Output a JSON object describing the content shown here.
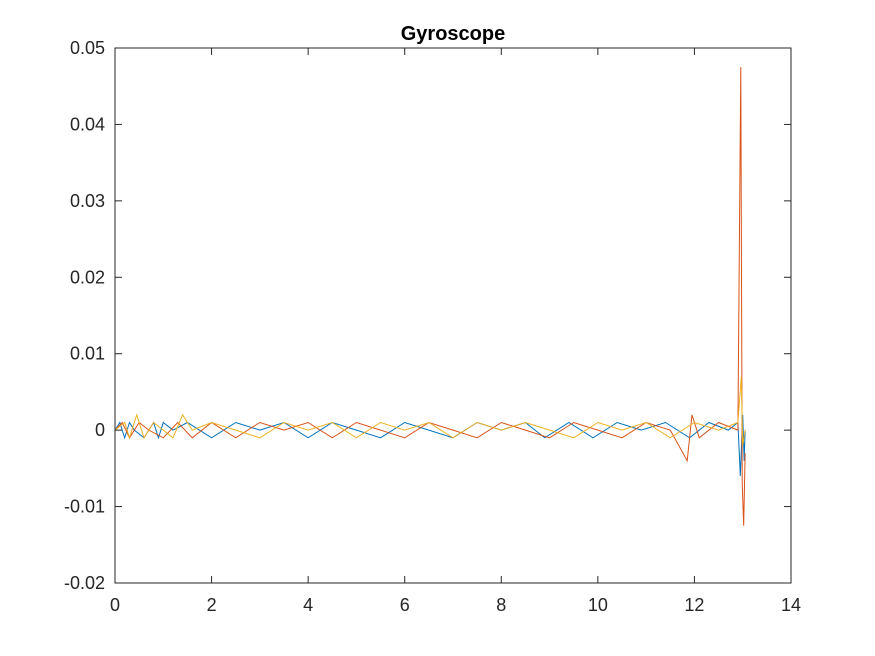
{
  "chart_data": {
    "type": "line",
    "title": "Gyroscope",
    "xlabel": "",
    "ylabel": "",
    "xlim": [
      0,
      14
    ],
    "ylim": [
      -0.02,
      0.05
    ],
    "x_ticks": [
      0,
      2,
      4,
      6,
      8,
      10,
      12,
      14
    ],
    "x_tick_labels": [
      "0",
      "2",
      "4",
      "6",
      "8",
      "10",
      "12",
      "14"
    ],
    "y_ticks": [
      -0.02,
      -0.01,
      0,
      0.01,
      0.02,
      0.03,
      0.04,
      0.05
    ],
    "y_tick_labels": [
      "-0.02",
      "-0.01",
      "0",
      "0.01",
      "0.02",
      "0.03",
      "0.04",
      "0.05"
    ],
    "grid": false,
    "legend": "none",
    "series": [
      {
        "color": "#0072BD",
        "points": [
          [
            0.0,
            0
          ],
          [
            0.1,
            0.001
          ],
          [
            0.2,
            -0.001
          ],
          [
            0.3,
            0.001
          ],
          [
            0.4,
            0
          ],
          [
            0.6,
            -0.001
          ],
          [
            0.8,
            0.001
          ],
          [
            0.9,
            -0.001
          ],
          [
            1.0,
            0.001
          ],
          [
            1.2,
            0
          ],
          [
            1.5,
            0.001
          ],
          [
            2.0,
            -0.001
          ],
          [
            2.5,
            0.001
          ],
          [
            3.0,
            0
          ],
          [
            3.5,
            0.001
          ],
          [
            4.0,
            -0.001
          ],
          [
            4.5,
            0.001
          ],
          [
            5.0,
            0
          ],
          [
            5.5,
            -0.001
          ],
          [
            6.0,
            0.001
          ],
          [
            6.5,
            0
          ],
          [
            7.0,
            -0.001
          ],
          [
            7.5,
            0.001
          ],
          [
            8.0,
            0
          ],
          [
            8.5,
            0.001
          ],
          [
            8.9,
            -0.001
          ],
          [
            9.4,
            0.001
          ],
          [
            9.9,
            -0.001
          ],
          [
            10.4,
            0.001
          ],
          [
            10.9,
            0
          ],
          [
            11.4,
            0.001
          ],
          [
            11.9,
            -0.001
          ],
          [
            12.3,
            0.001
          ],
          [
            12.7,
            0
          ],
          [
            12.9,
            0.001
          ],
          [
            12.95,
            -0.006
          ],
          [
            13.0,
            0.002
          ],
          [
            13.03,
            -0.004
          ],
          [
            13.05,
            0
          ]
        ]
      },
      {
        "color": "#D95319",
        "points": [
          [
            0.0,
            0
          ],
          [
            0.15,
            0.001
          ],
          [
            0.3,
            -0.001
          ],
          [
            0.5,
            0.001
          ],
          [
            0.7,
            0
          ],
          [
            1.0,
            -0.001
          ],
          [
            1.3,
            0.001
          ],
          [
            1.6,
            -0.001
          ],
          [
            2.0,
            0.001
          ],
          [
            2.5,
            -0.001
          ],
          [
            3.0,
            0.001
          ],
          [
            3.5,
            0
          ],
          [
            4.0,
            0.001
          ],
          [
            4.5,
            -0.001
          ],
          [
            5.0,
            0.001
          ],
          [
            5.5,
            0
          ],
          [
            6.0,
            -0.001
          ],
          [
            6.5,
            0.001
          ],
          [
            7.0,
            0
          ],
          [
            7.5,
            -0.001
          ],
          [
            8.0,
            0.001
          ],
          [
            8.5,
            0
          ],
          [
            9.0,
            -0.001
          ],
          [
            9.5,
            0.001
          ],
          [
            10.0,
            0
          ],
          [
            10.5,
            -0.001
          ],
          [
            11.0,
            0.001
          ],
          [
            11.5,
            0
          ],
          [
            11.85,
            -0.004
          ],
          [
            11.95,
            0.002
          ],
          [
            12.1,
            -0.001
          ],
          [
            12.5,
            0.001
          ],
          [
            12.9,
            0
          ],
          [
            12.96,
            0.0475
          ],
          [
            12.99,
            -0.007
          ],
          [
            13.02,
            -0.0125
          ],
          [
            13.05,
            -0.003
          ]
        ]
      },
      {
        "color": "#EDB120",
        "points": [
          [
            0.0,
            0
          ],
          [
            0.2,
            0.001
          ],
          [
            0.3,
            -0.001
          ],
          [
            0.45,
            0.002
          ],
          [
            0.6,
            -0.001
          ],
          [
            0.8,
            0.001
          ],
          [
            1.0,
            0
          ],
          [
            1.2,
            -0.001
          ],
          [
            1.4,
            0.002
          ],
          [
            1.6,
            0
          ],
          [
            2.0,
            0.001
          ],
          [
            2.5,
            0
          ],
          [
            3.0,
            -0.001
          ],
          [
            3.5,
            0.001
          ],
          [
            4.0,
            0
          ],
          [
            4.5,
            0.001
          ],
          [
            5.0,
            -0.001
          ],
          [
            5.5,
            0.001
          ],
          [
            6.0,
            0
          ],
          [
            6.5,
            0.001
          ],
          [
            7.0,
            -0.001
          ],
          [
            7.5,
            0.001
          ],
          [
            8.0,
            0
          ],
          [
            8.5,
            0.001
          ],
          [
            9.0,
            0
          ],
          [
            9.5,
            -0.001
          ],
          [
            10.0,
            0.001
          ],
          [
            10.5,
            0
          ],
          [
            11.0,
            0.001
          ],
          [
            11.5,
            -0.001
          ],
          [
            12.0,
            0.001
          ],
          [
            12.5,
            0
          ],
          [
            12.9,
            0.001
          ],
          [
            12.97,
            0.007
          ],
          [
            13.0,
            -0.002
          ],
          [
            13.05,
            0
          ]
        ]
      }
    ]
  }
}
